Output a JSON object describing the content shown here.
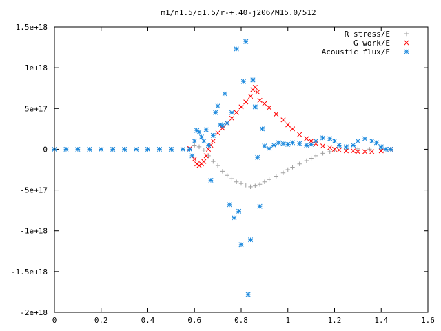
{
  "chart_data": {
    "type": "scatter",
    "title": "m1/n1.5/q1.5/r-+.40-j206/M15.0/512",
    "xlabel": "",
    "ylabel": "",
    "xlim": [
      0,
      1.6
    ],
    "ylim": [
      -2e+18,
      1.5e+18
    ],
    "x_ticks": [
      0,
      0.2,
      0.4,
      0.6,
      0.8,
      1,
      1.2,
      1.4,
      1.6
    ],
    "x_tick_labels": [
      "0",
      "0.2",
      "0.4",
      "0.6",
      "0.8",
      "1",
      "1.2",
      "1.4",
      "1.6"
    ],
    "y_ticks": [
      1.5e+18,
      1e+18,
      5e+17,
      0,
      -5e+17,
      -1e+18,
      -1.5e+18,
      -2e+18
    ],
    "y_tick_labels": [
      "1.5e+18",
      "1e+18",
      "5e+17",
      "0",
      "-5e+17",
      "-1e+18",
      "-1.5e+18",
      "-2e+18"
    ],
    "grid": false,
    "legend_position": "top-right",
    "series": [
      {
        "name": "R stress/E",
        "marker": "plus",
        "color": "#a0a0a0",
        "x": [
          0,
          0.05,
          0.1,
          0.15,
          0.2,
          0.25,
          0.3,
          0.35,
          0.4,
          0.45,
          0.5,
          0.55,
          0.58,
          0.6,
          0.62,
          0.64,
          0.66,
          0.68,
          0.7,
          0.72,
          0.74,
          0.76,
          0.78,
          0.8,
          0.82,
          0.84,
          0.86,
          0.88,
          0.9,
          0.92,
          0.95,
          0.98,
          1.0,
          1.02,
          1.05,
          1.08,
          1.1,
          1.12,
          1.15,
          1.18,
          1.2,
          1.25,
          1.3,
          1.35,
          1.4,
          1.44
        ],
        "values": [
          0,
          0,
          0,
          0,
          0,
          0,
          0,
          0,
          0,
          0,
          0,
          0,
          0,
          5e+16,
          3e+16,
          -1e+16,
          -8e+16,
          -1.5e+17,
          -2e+17,
          -2.7e+17,
          -3.2e+17,
          -3.6e+17,
          -4e+17,
          -4.2e+17,
          -4.4e+17,
          -4.6e+17,
          -4.5e+17,
          -4.3e+17,
          -4e+17,
          -3.7e+17,
          -3.3e+17,
          -2.9e+17,
          -2.5e+17,
          -2.2e+17,
          -1.8e+17,
          -1.4e+17,
          -1.1e+17,
          -8e+16,
          -5e+16,
          -3e+16,
          -1e+16,
          0,
          5000000000000000.0,
          1000000000000000.0,
          0,
          0
        ]
      },
      {
        "name": "G work/E",
        "marker": "cross",
        "color": "#ff0000",
        "x": [
          0.58,
          0.6,
          0.61,
          0.62,
          0.63,
          0.64,
          0.65,
          0.66,
          0.67,
          0.68,
          0.7,
          0.72,
          0.74,
          0.76,
          0.78,
          0.8,
          0.82,
          0.84,
          0.85,
          0.86,
          0.87,
          0.88,
          0.9,
          0.92,
          0.95,
          0.98,
          1.0,
          1.02,
          1.05,
          1.08,
          1.1,
          1.12,
          1.15,
          1.18,
          1.2,
          1.22,
          1.25,
          1.28,
          1.3,
          1.33,
          1.36,
          1.4,
          1.44
        ],
        "values": [
          1e+16,
          -1.2e+17,
          -1.8e+17,
          -2e+17,
          -1.8e+17,
          -1.5e+17,
          -8e+16,
          0,
          5e+16,
          1e+17,
          2e+17,
          2.6e+17,
          3.2e+17,
          3.8e+17,
          4.5e+17,
          5.2e+17,
          5.8e+17,
          6.5e+17,
          7.3e+17,
          7.6e+17,
          7e+17,
          6e+17,
          5.6e+17,
          5.1e+17,
          4.3e+17,
          3.6e+17,
          3e+17,
          2.5e+17,
          1.8e+17,
          1.3e+17,
          1e+17,
          7e+16,
          4e+16,
          2e+16,
          0,
          -1e+16,
          -2e+16,
          -2e+16,
          -3e+16,
          -3e+16,
          -3e+16,
          -2e+16,
          0
        ]
      },
      {
        "name": "Acoustic flux/E",
        "marker": "star",
        "color": "#1a88dd",
        "x": [
          0,
          0.05,
          0.1,
          0.15,
          0.2,
          0.25,
          0.3,
          0.35,
          0.4,
          0.45,
          0.5,
          0.55,
          0.58,
          0.59,
          0.6,
          0.61,
          0.62,
          0.63,
          0.64,
          0.65,
          0.66,
          0.67,
          0.68,
          0.69,
          0.7,
          0.71,
          0.72,
          0.73,
          0.74,
          0.75,
          0.76,
          0.77,
          0.78,
          0.79,
          0.8,
          0.81,
          0.82,
          0.83,
          0.84,
          0.85,
          0.86,
          0.87,
          0.88,
          0.89,
          0.9,
          0.92,
          0.94,
          0.96,
          0.98,
          1.0,
          1.02,
          1.05,
          1.08,
          1.1,
          1.12,
          1.15,
          1.18,
          1.2,
          1.22,
          1.25,
          1.28,
          1.3,
          1.33,
          1.36,
          1.38,
          1.4,
          1.42,
          1.44
        ],
        "values": [
          0,
          0,
          0,
          0,
          0,
          0,
          0,
          0,
          0,
          0,
          0,
          0,
          0,
          -8e+16,
          1e+17,
          2.3e+17,
          2.1e+17,
          1.5e+17,
          1e+17,
          2.4e+17,
          5e+16,
          -3.8e+17,
          1.7e+17,
          4.5e+17,
          5.3e+17,
          3e+17,
          2.9e+17,
          6.8e+17,
          3.2e+17,
          -6.8e+17,
          4.5e+17,
          -8.4e+17,
          1.23e+18,
          -7.6e+17,
          -1.17e+18,
          8.3e+17,
          1.32e+18,
          -1.78e+18,
          -1.11e+18,
          8.5e+17,
          5.2e+17,
          -1e+17,
          -7e+17,
          2.5e+17,
          4e+16,
          1e+16,
          5e+16,
          8e+16,
          7e+16,
          6e+16,
          8e+16,
          7e+16,
          5e+16,
          6e+16,
          1e+17,
          1.4e+17,
          1.3e+17,
          1e+17,
          5e+16,
          3e+16,
          5e+16,
          1e+17,
          1.3e+17,
          1e+17,
          8e+16,
          3e+16,
          0,
          0
        ]
      }
    ]
  }
}
